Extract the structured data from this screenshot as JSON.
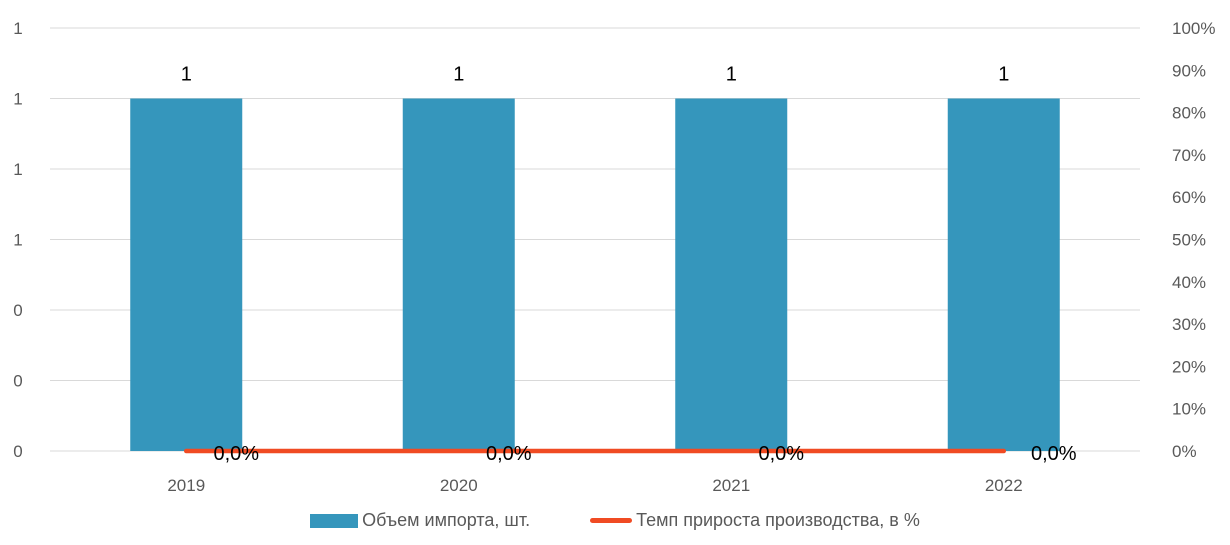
{
  "chart_data": {
    "type": "bar",
    "categories": [
      "2019",
      "2020",
      "2021",
      "2022"
    ],
    "series": [
      {
        "name": "Объем импорта, шт.",
        "type": "bar",
        "axis": "left",
        "values": [
          1,
          1,
          1,
          1
        ],
        "data_labels": [
          "1",
          "1",
          "1",
          "1"
        ],
        "color": "#3596BC"
      },
      {
        "name": "Темп прироста производства, в %",
        "type": "line",
        "axis": "right",
        "values": [
          0,
          0,
          0,
          0
        ],
        "data_labels": [
          "0,0%",
          "0,0%",
          "0,0%",
          "0,0%"
        ],
        "color": "#F04B23"
      }
    ],
    "left_axis": {
      "ylim": [
        0,
        1.2
      ],
      "tick_labels": [
        "0",
        "0",
        "0",
        "1",
        "1",
        "1",
        "1"
      ]
    },
    "right_axis": {
      "ylim": [
        0,
        100
      ],
      "unit": "%",
      "tick_labels": [
        "0%",
        "10%",
        "20%",
        "30%",
        "40%",
        "50%",
        "60%",
        "70%",
        "80%",
        "90%",
        "100%"
      ]
    },
    "grid": true,
    "legend_position": "bottom",
    "title": "",
    "xlabel": "",
    "ylabel": ""
  }
}
